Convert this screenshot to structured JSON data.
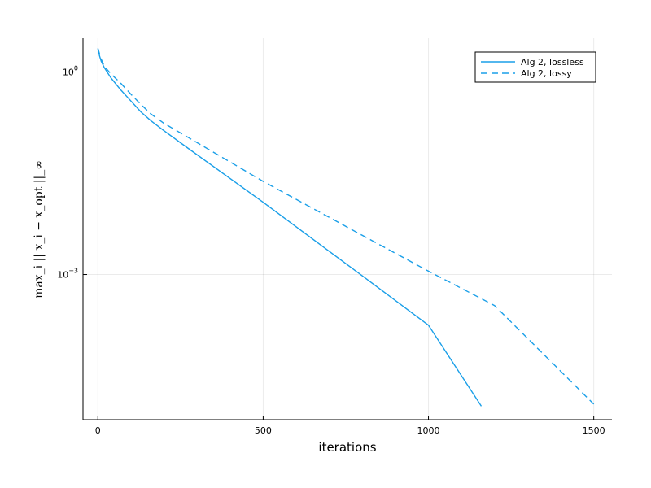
{
  "chart_data": {
    "type": "line",
    "xlabel": "iterations",
    "ylabel": "max_i || x_i − x_opt ||_∞",
    "xlim": [
      -45,
      1555
    ],
    "ylim_log10": [
      -5.15,
      0.5
    ],
    "yscale": "log",
    "grid": true,
    "legend_position": "top-right",
    "x_ticks": [
      0,
      500,
      1000,
      1500
    ],
    "y_ticks": [
      {
        "log10": 0,
        "label_base": "10",
        "label_exp": "0"
      },
      {
        "log10": -3,
        "label_base": "10",
        "label_exp": "−3"
      }
    ],
    "series": [
      {
        "name": "Alg 2, lossless",
        "color": "#1a9fe8",
        "dash": "solid",
        "x": [
          0,
          5,
          10,
          20,
          40,
          70,
          100,
          130,
          160,
          200,
          270,
          500,
          800,
          1000,
          1160
        ],
        "log10_y": [
          0.35,
          0.24,
          0.16,
          0.06,
          -0.09,
          -0.27,
          -0.43,
          -0.59,
          -0.72,
          -0.87,
          -1.12,
          -1.93,
          -3.02,
          -3.75,
          -4.95
        ]
      },
      {
        "name": "Alg 2, lossy",
        "color": "#1a9fe8",
        "dash": "dashed",
        "x": [
          0,
          5,
          10,
          20,
          40,
          70,
          100,
          130,
          160,
          200,
          270,
          500,
          800,
          1000,
          1200,
          1500
        ],
        "log10_y": [
          0.35,
          0.27,
          0.19,
          0.08,
          -0.03,
          -0.17,
          -0.33,
          -0.48,
          -0.62,
          -0.76,
          -0.96,
          -1.62,
          -2.42,
          -2.95,
          -3.46,
          -4.92
        ]
      }
    ]
  }
}
